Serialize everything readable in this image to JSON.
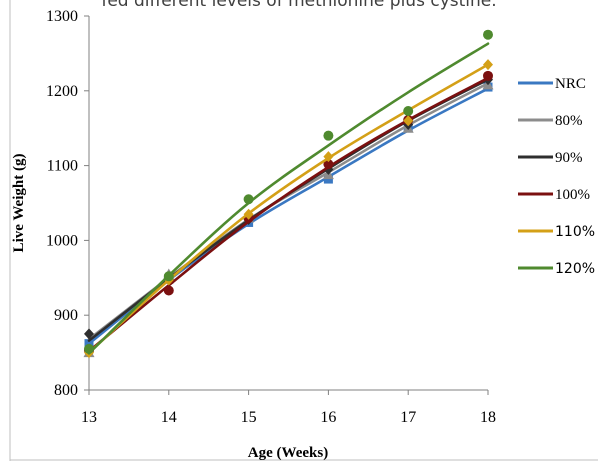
{
  "title": "fed different levels of methionine plus cystine.",
  "chart_data": {
    "type": "line",
    "xlabel": "Age (Weeks)",
    "ylabel": "Live Weight (g)",
    "x": [
      13,
      14,
      15,
      16,
      17,
      18
    ],
    "xlim": [
      13,
      18
    ],
    "ylim": [
      800,
      1300
    ],
    "yticks": [
      800,
      900,
      1000,
      1100,
      1200,
      1300
    ],
    "grid": false,
    "legend": "right",
    "series": [
      {
        "name": "NRC",
        "color": "#3a78c2",
        "marker": "square",
        "points": [
          862,
          948,
          1024,
          1082,
          1151,
          1205
        ],
        "trend": [
          862,
          947,
          1022,
          1085,
          1147,
          1203
        ]
      },
      {
        "name": "80%",
        "color": "#8c8c8c",
        "marker": "triangle",
        "points": [
          850,
          955,
          1030,
          1088,
          1150,
          1208
        ],
        "trend": [
          868,
          950,
          1028,
          1091,
          1154,
          1210
        ]
      },
      {
        "name": "90%",
        "color": "#2f2f2f",
        "marker": "diamond",
        "points": [
          875,
          948,
          1028,
          1095,
          1155,
          1215
        ],
        "trend": [
          866,
          949,
          1027,
          1096,
          1160,
          1215
        ]
      },
      {
        "name": "100%",
        "color": "#7b1010",
        "marker": "circle",
        "points": [
          853,
          933,
          1030,
          1102,
          1161,
          1220
        ],
        "trend": [
          852,
          940,
          1025,
          1098,
          1161,
          1217
        ]
      },
      {
        "name": "110%",
        "color": "#d4a017",
        "marker": "diamond",
        "points": [
          850,
          947,
          1035,
          1112,
          1160,
          1235
        ],
        "trend": [
          850,
          947,
          1036,
          1110,
          1174,
          1235
        ]
      },
      {
        "name": "120%",
        "color": "#4f8a2f",
        "marker": "circle",
        "points": [
          855,
          952,
          1055,
          1140,
          1173,
          1275
        ],
        "trend": [
          849,
          953,
          1050,
          1127,
          1198,
          1263
        ]
      }
    ]
  }
}
